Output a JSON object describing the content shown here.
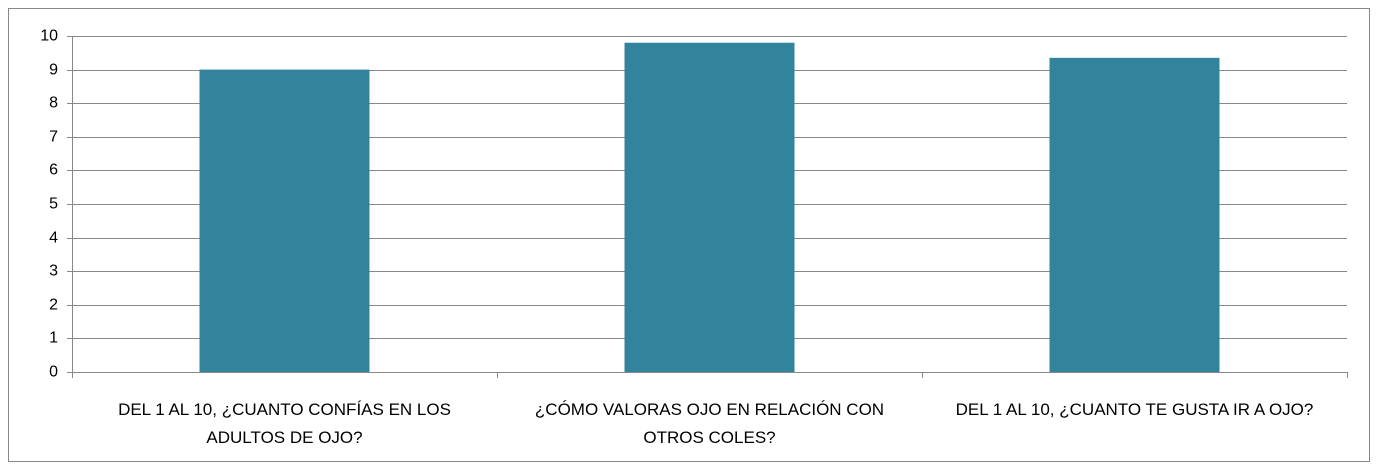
{
  "chart_data": {
    "type": "bar",
    "categories": [
      "DEL 1 AL 10, ¿CUANTO CONFÍAS EN LOS ADULTOS DE OJO?",
      "¿CÓMO VALORAS OJO EN RELACIÓN CON OTROS COLES?",
      "DEL 1 AL 10, ¿CUANTO TE GUSTA IR A OJO?"
    ],
    "values": [
      9,
      9.8,
      9.35
    ],
    "color": "#31849b",
    "ylim": [
      0,
      10
    ],
    "yticks": [
      0,
      1,
      2,
      3,
      4,
      5,
      6,
      7,
      8,
      9,
      10
    ],
    "grid": true
  }
}
